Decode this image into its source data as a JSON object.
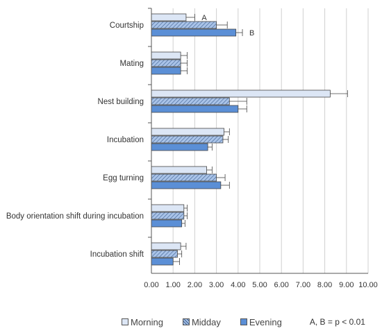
{
  "chart_data": {
    "type": "bar",
    "orientation": "horizontal",
    "categories": [
      "Courtship",
      "Mating",
      "Nest building",
      "Incubation",
      "Egg turning",
      "Body orientation shift during incubation",
      "Incubation shift"
    ],
    "series": [
      {
        "name": "Morning",
        "color": "#dce6f5",
        "pattern": "solid",
        "values": [
          1.6,
          1.35,
          8.25,
          3.35,
          2.55,
          1.5,
          1.35
        ],
        "errors": [
          0.4,
          0.3,
          0.8,
          0.25,
          0.25,
          0.15,
          0.25
        ]
      },
      {
        "name": "Midday",
        "color": "#a9c3e8",
        "pattern": "hatched",
        "values": [
          3.0,
          1.35,
          3.6,
          3.3,
          3.0,
          1.5,
          1.2
        ],
        "errors": [
          0.5,
          0.3,
          0.8,
          0.25,
          0.4,
          0.15,
          0.2
        ]
      },
      {
        "name": "Evening",
        "color": "#5b8fd6",
        "pattern": "solid",
        "values": [
          3.9,
          1.35,
          4.0,
          2.6,
          3.2,
          1.4,
          1.0
        ],
        "errors": [
          0.3,
          0.3,
          0.4,
          0.2,
          0.4,
          0.15,
          0.3
        ]
      }
    ],
    "annotations": [
      {
        "category": "Courtship",
        "series": "Morning",
        "text": "A"
      },
      {
        "category": "Courtship",
        "series": "Evening",
        "text": "B"
      }
    ],
    "xlim": [
      0,
      10
    ],
    "xticks": [
      "0.00",
      "1.00",
      "2.00",
      "3.00",
      "4.00",
      "5.00",
      "6.00",
      "7.00",
      "8.00",
      "9.00",
      "10.00"
    ],
    "grid": "vertical",
    "legend_position": "bottom",
    "significance_note": "A, B = p < 0.01"
  }
}
